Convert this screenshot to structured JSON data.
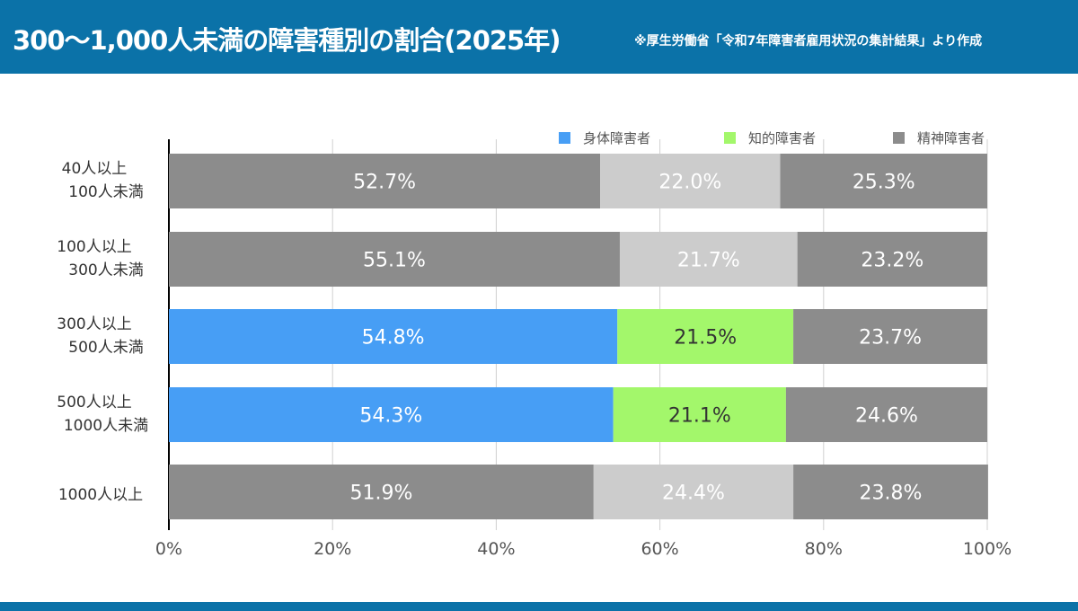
{
  "header": {
    "title": "300〜1,000人未満の障害種別の割合(2025年)",
    "source_note": "※厚生労働省「令和7年障害者雇用状況の集計結果」より作成"
  },
  "chart_data": {
    "type": "bar",
    "orientation": "horizontal",
    "stacked": true,
    "percent": true,
    "categories": [
      "40人以上\n100人未満",
      "100人以上\n300人未満",
      "300人以上\n500人未満",
      "500人以上\n1000人未満",
      "1000人以上"
    ],
    "series": [
      {
        "name": "身体障害者",
        "color": "#479ef5",
        "values": [
          52.7,
          55.1,
          54.8,
          54.3,
          51.9
        ]
      },
      {
        "name": "知的障害者",
        "color": "#a3f76b",
        "values": [
          22.0,
          21.7,
          21.5,
          21.1,
          24.4
        ]
      },
      {
        "name": "精神障害者",
        "color": "#8c8c8c",
        "values": [
          25.3,
          23.2,
          23.7,
          24.6,
          23.8
        ]
      }
    ],
    "highlighted_categories": [
      "300人以上\n500人未満",
      "500人以上\n1000人未満"
    ],
    "muted_colors": [
      "#8c8c8c",
      "#cccccc",
      "#8c8c8c"
    ],
    "xlim": [
      0,
      100
    ],
    "xticks": [
      "0%",
      "20%",
      "40%",
      "60%",
      "80%",
      "100%"
    ],
    "grid": true,
    "legend_position": "top-right"
  }
}
